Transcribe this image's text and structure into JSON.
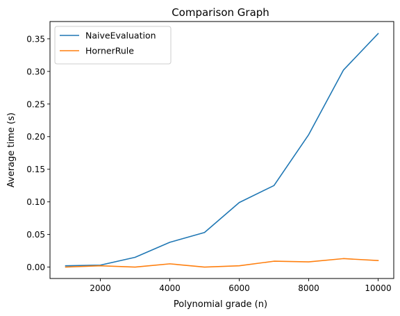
{
  "chart_data": {
    "type": "line",
    "title": "Comparison Graph",
    "xlabel": "Polynomial grade (n)",
    "ylabel": "Average time (s)",
    "x": [
      1000,
      2000,
      3000,
      4000,
      5000,
      6000,
      7000,
      8000,
      9000,
      10000
    ],
    "xlim": [
      550,
      10450
    ],
    "ylim": [
      -0.0175,
      0.3765
    ],
    "xticks": [
      2000,
      4000,
      6000,
      8000,
      10000
    ],
    "xtick_labels": [
      "2000",
      "4000",
      "6000",
      "8000",
      "10000"
    ],
    "yticks": [
      0.0,
      0.05,
      0.1,
      0.15,
      0.2,
      0.25,
      0.3,
      0.35
    ],
    "ytick_labels": [
      "0.00",
      "0.05",
      "0.10",
      "0.15",
      "0.20",
      "0.25",
      "0.30",
      "0.35"
    ],
    "grid": false,
    "legend_position": "top-left",
    "series": [
      {
        "name": "NaiveEvaluation",
        "color": "#1f77b4",
        "values": [
          0.002,
          0.003,
          0.015,
          0.038,
          0.053,
          0.099,
          0.125,
          0.203,
          0.302,
          0.358
        ]
      },
      {
        "name": "HornerRule",
        "color": "#ff7f0e",
        "values": [
          0.0,
          0.002,
          0.0,
          0.005,
          0.0,
          0.002,
          0.009,
          0.008,
          0.013,
          0.01
        ]
      }
    ]
  }
}
